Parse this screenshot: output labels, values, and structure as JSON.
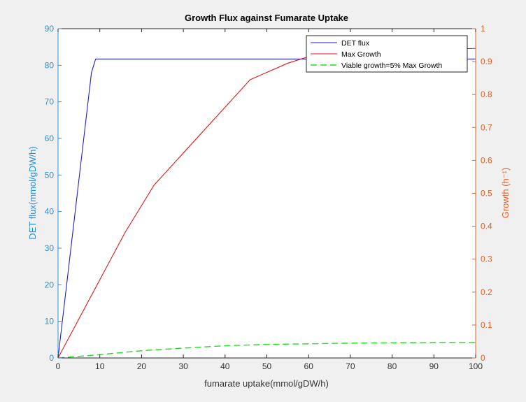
{
  "chart_data": {
    "type": "line",
    "title": "Growth Flux against Fumarate Uptake",
    "xlabel": "fumarate uptake(mmol/gDW/h)",
    "ylabel_left": "DET flux(mmol/gDW/h)",
    "ylabel_right": "Growth (h⁻¹)",
    "xlim": [
      0,
      100
    ],
    "ylim_left": [
      0,
      90
    ],
    "ylim_right": [
      0,
      1
    ],
    "x_ticks": [
      0,
      10,
      20,
      30,
      40,
      50,
      60,
      70,
      80,
      90,
      100
    ],
    "y_left_ticks": [
      0,
      10,
      20,
      30,
      40,
      50,
      60,
      70,
      80,
      90
    ],
    "y_right_ticks": [
      0,
      0.1,
      0.2,
      0.3,
      0.4,
      0.5,
      0.6,
      0.7,
      0.8,
      0.9,
      1
    ],
    "grid": false,
    "legend_position": "top-right",
    "colors": {
      "left_axis": "#2b8fd6",
      "right_axis": "#e0622a",
      "det": "#1d1dd8",
      "max_growth": "#e01818",
      "viable": "#22dd22"
    },
    "series": [
      {
        "name": "DET flux",
        "axis": "left",
        "style": "solid",
        "x": [
          0,
          8,
          9,
          100
        ],
        "y": [
          0,
          78,
          81.7,
          81.7
        ]
      },
      {
        "name": "Max Growth",
        "axis": "right",
        "style": "solid",
        "x": [
          0,
          16,
          23,
          46,
          55,
          60,
          62,
          100
        ],
        "y": [
          0,
          0.38,
          0.525,
          0.845,
          0.895,
          0.915,
          0.93,
          0.94
        ]
      },
      {
        "name": "Viable growth=5% Max Growth",
        "axis": "right",
        "style": "dashed",
        "x": [
          0,
          10,
          20,
          30,
          40,
          50,
          60,
          70,
          80,
          90,
          100
        ],
        "y": [
          0,
          0.01,
          0.022,
          0.03,
          0.037,
          0.041,
          0.043,
          0.045,
          0.046,
          0.047,
          0.047
        ]
      }
    ]
  }
}
